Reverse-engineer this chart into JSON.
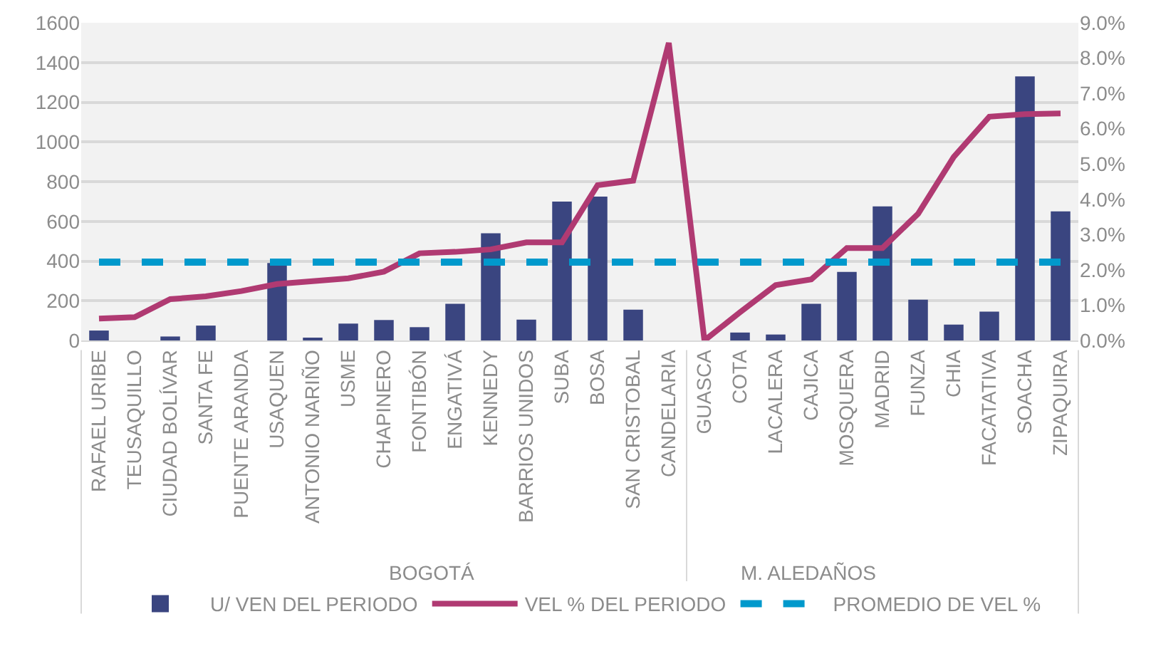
{
  "chart_data": {
    "type": "bar",
    "categories": [
      "RAFAEL URIBE",
      "TEUSAQUILLO",
      "CIUDAD BOLÍVAR",
      "SANTA FE",
      "PUENTE ARANDA",
      "USAQUEN",
      "ANTONIO NARIÑO",
      "USME",
      "CHAPINERO",
      "FONTIBÓN",
      "ENGATIVÁ",
      "KENNEDY",
      "BARRIOS UNIDOS",
      "SUBA",
      "BOSA",
      "SAN CRISTOBAL",
      "CANDELARIA",
      "GUASCA",
      "COTA",
      "LACALERA",
      "CAJICA",
      "MOSQUERA",
      "MADRID",
      "FUNZA",
      "CHIA",
      "FACATATIVA",
      "SOACHA",
      "ZIPAQUIRA"
    ],
    "series": [
      {
        "name": "U/ VEN DEL PERIODO",
        "color": "#3a4580",
        "values": [
          50,
          0,
          20,
          75,
          0,
          390,
          10,
          85,
          103,
          67,
          185,
          540,
          105,
          700,
          725,
          155,
          0,
          0,
          40,
          30,
          185,
          345,
          675,
          205,
          80,
          145,
          1330,
          650
        ]
      },
      {
        "name": "VEL % DEL PERIODO",
        "type": "line",
        "axis": "y2",
        "color": "#b03a72",
        "line_style": "solid",
        "values": [
          0.62,
          0.66,
          1.17,
          1.25,
          1.4,
          1.6,
          1.68,
          1.76,
          1.95,
          2.47,
          2.51,
          2.58,
          2.78,
          2.78,
          4.4,
          4.53,
          8.43,
          0,
          0.8,
          1.57,
          1.73,
          2.62,
          2.62,
          3.59,
          5.2,
          6.34,
          6.41,
          6.43
        ]
      },
      {
        "name": "PROMEDIO DE VEL %",
        "type": "line",
        "axis": "y2",
        "color": "#0099cc",
        "line_style": "dashed",
        "values": [
          2.22,
          2.22,
          2.22,
          2.22,
          2.22,
          2.22,
          2.22,
          2.22,
          2.22,
          2.22,
          2.22,
          2.22,
          2.22,
          2.22,
          2.22,
          2.22,
          2.22,
          2.22,
          2.22,
          2.22,
          2.22,
          2.22,
          2.22,
          2.22,
          2.22,
          2.22,
          2.22,
          2.22
        ]
      }
    ],
    "ylim": [
      0,
      1600
    ],
    "yticks": [
      0,
      200,
      400,
      600,
      800,
      1000,
      1200,
      1400,
      1600
    ],
    "y2lim": [
      0,
      9
    ],
    "y2ticks": [
      {
        "value": 0,
        "label": "0.0%"
      },
      {
        "value": 1,
        "label": "1.0%"
      },
      {
        "value": 2,
        "label": "2.0%"
      },
      {
        "value": 3,
        "label": "3.0%"
      },
      {
        "value": 4,
        "label": "4.0%"
      },
      {
        "value": 5,
        "label": "5.0%"
      },
      {
        "value": 6,
        "label": "6.0%"
      },
      {
        "value": 7,
        "label": "7.0%"
      },
      {
        "value": 8,
        "label": "8.0%"
      },
      {
        "value": 9,
        "label": "9.0%"
      }
    ],
    "annotations": [
      "BOGOTÁ",
      "M. ALEDAÑOS"
    ],
    "grid": "y",
    "legend": "bottom",
    "marker": "none"
  }
}
